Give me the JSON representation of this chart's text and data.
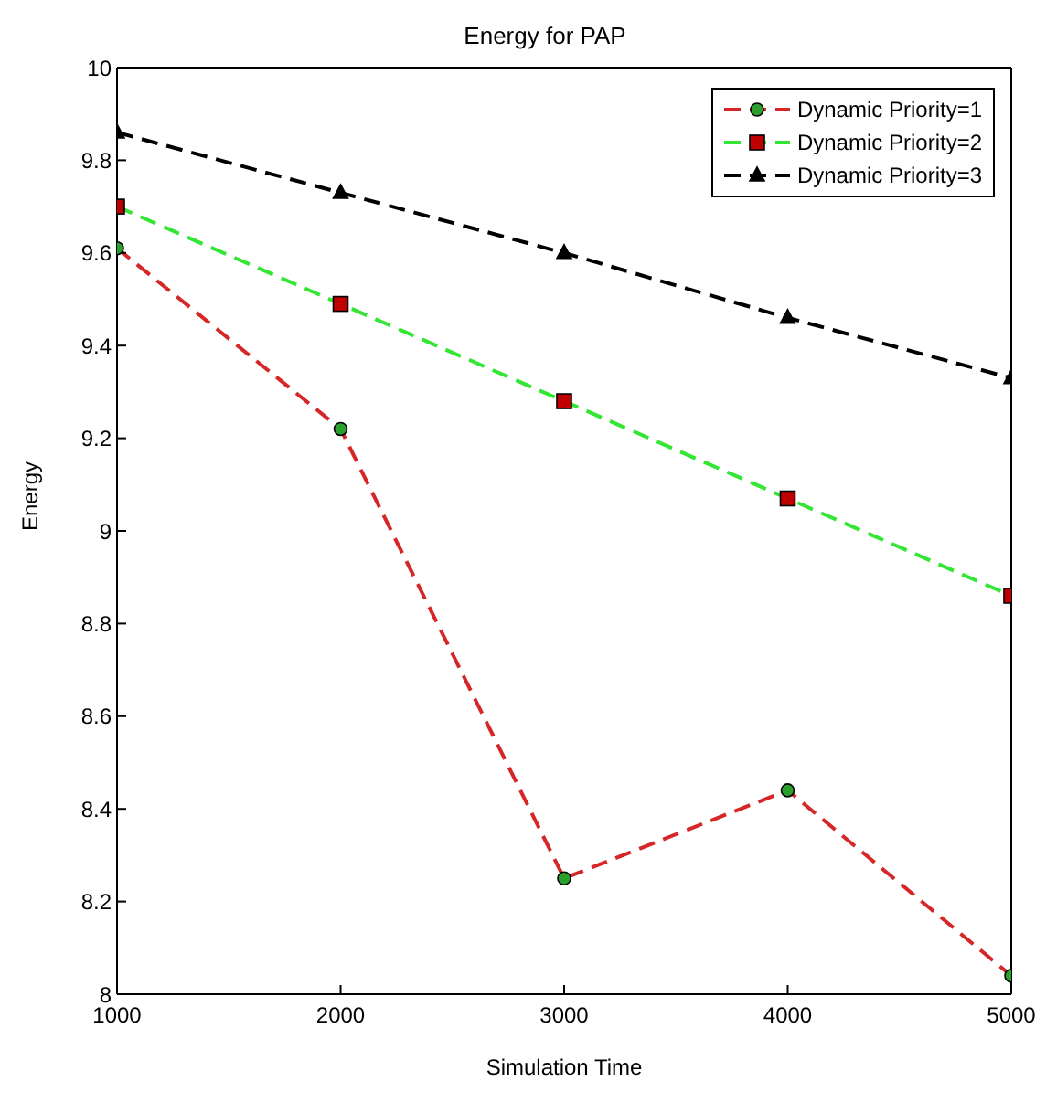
{
  "chart_data": {
    "type": "line",
    "title": "Energy for PAP",
    "xlabel": "Simulation Time",
    "ylabel": "Energy",
    "x": [
      1000,
      2000,
      3000,
      4000,
      5000
    ],
    "series": [
      {
        "name": "Dynamic Priority=1",
        "color": "#d62728",
        "marker": "circle",
        "values": [
          9.61,
          9.22,
          8.25,
          8.44,
          8.04
        ]
      },
      {
        "name": "Dynamic Priority=2",
        "color": "#33e633",
        "marker": "square",
        "values": [
          9.7,
          9.49,
          9.28,
          9.07,
          8.86
        ]
      },
      {
        "name": "Dynamic Priority=3",
        "color": "#000000",
        "marker": "triangle",
        "values": [
          9.86,
          9.73,
          9.6,
          9.46,
          9.33
        ]
      }
    ],
    "xlim": [
      1000,
      5000
    ],
    "xticks": [
      1000,
      2000,
      3000,
      4000,
      5000
    ],
    "ylim": [
      8,
      10
    ],
    "yticks": [
      8,
      8.2,
      8.4,
      8.6,
      8.8,
      9,
      9.2,
      9.4,
      9.6,
      9.8,
      10
    ],
    "line_style": "dashed",
    "legend": "top right",
    "grid": false
  }
}
